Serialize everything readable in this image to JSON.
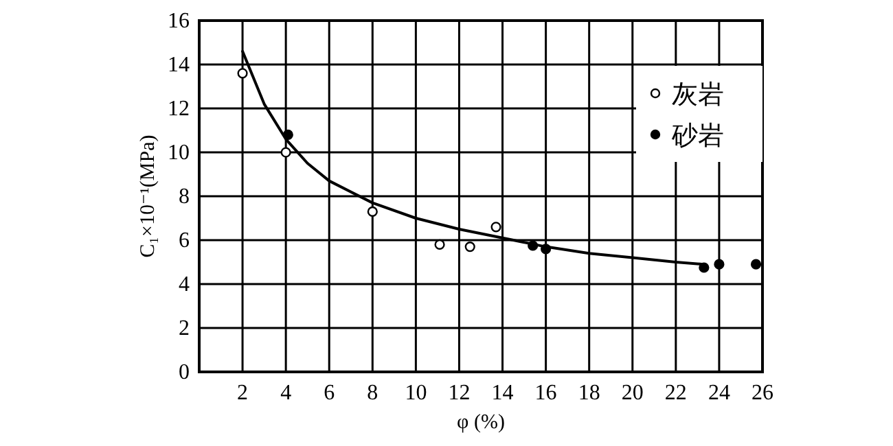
{
  "chart_data": {
    "type": "scatter",
    "xlabel": "φ (%)",
    "ylabel": "C₁×10⁻¹(MPa)",
    "xlim": [
      0,
      26
    ],
    "ylim": [
      0,
      16
    ],
    "xticks": [
      2,
      4,
      6,
      8,
      10,
      12,
      14,
      16,
      18,
      20,
      22,
      24,
      26
    ],
    "yticks": [
      0,
      2,
      4,
      6,
      8,
      10,
      12,
      14,
      16
    ],
    "grid": true,
    "legend": "top right",
    "marker": "circle",
    "series": [
      {
        "name": "灰岩",
        "color": "#ffffff",
        "x": [
          2.0,
          4.0,
          8.0,
          11.1,
          12.5,
          13.7
        ],
        "values": [
          13.6,
          10.0,
          7.3,
          5.8,
          5.7,
          6.6
        ]
      },
      {
        "name": "砂岩",
        "color": "#000000",
        "x": [
          4.1,
          15.4,
          16.0,
          23.3,
          24.0,
          25.7
        ],
        "values": [
          10.8,
          5.75,
          5.6,
          4.75,
          4.9,
          4.9
        ]
      },
      {
        "type": "line",
        "marker": "none",
        "color": "#000000",
        "x": [
          2,
          3,
          4,
          5,
          6,
          8,
          10,
          12,
          14,
          16,
          18,
          20,
          22,
          23.3
        ],
        "values": [
          14.6,
          12.2,
          10.6,
          9.5,
          8.7,
          7.7,
          7.0,
          6.5,
          6.1,
          5.7,
          5.4,
          5.2,
          5.0,
          4.9
        ]
      }
    ]
  }
}
